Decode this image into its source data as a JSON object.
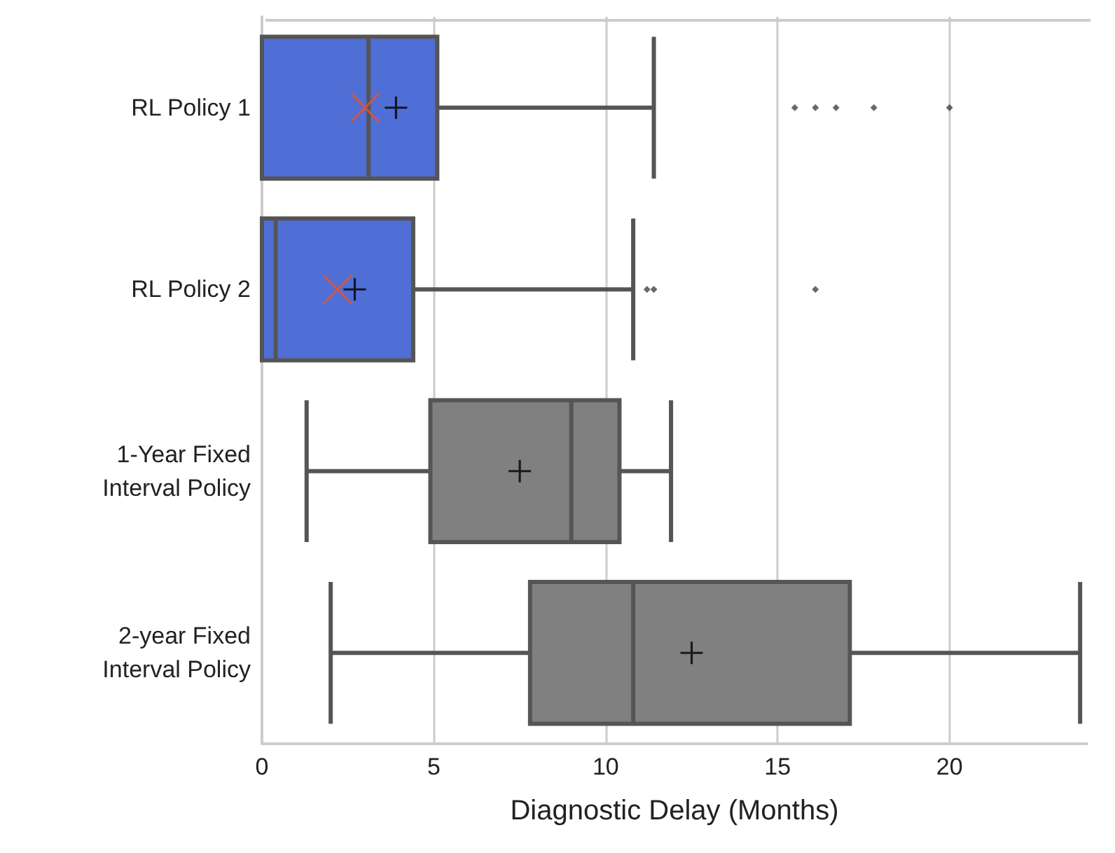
{
  "chart_data": {
    "type": "box",
    "orientation": "horizontal",
    "xlabel": "Diagnostic Delay (Months)",
    "categories": [
      "RL Policy 1",
      "RL Policy 2",
      "1-Year Fixed\nInterval Policy",
      "2-year Fixed\nInterval Policy"
    ],
    "xlim": [
      0,
      24
    ],
    "xticks": [
      0,
      5,
      10,
      15,
      20
    ],
    "grid": "x",
    "series": [
      {
        "colors": [
          "#4f6fd6",
          "#4f6fd6",
          "#808080",
          "#808080"
        ],
        "boxes": [
          {
            "low": 0,
            "q1": 0,
            "median": 3.1,
            "q3": 5.1,
            "high": 11.4,
            "mean": 3.9,
            "outliers": [
              15.5,
              16.1,
              16.7,
              17.8,
              20.0
            ]
          },
          {
            "low": 0,
            "q1": 0,
            "median": 0.4,
            "q3": 4.4,
            "high": 10.8,
            "mean": 2.7,
            "outliers": [
              11.2,
              11.4,
              16.1
            ]
          },
          {
            "low": 1.3,
            "q1": 4.9,
            "median": 9.0,
            "q3": 10.4,
            "high": 11.9,
            "mean": 7.5
          },
          {
            "low": 2.0,
            "q1": 7.8,
            "median": 10.8,
            "q3": 17.1,
            "high": 23.8,
            "mean": 12.5
          }
        ]
      },
      {
        "type": "scatter",
        "marker": "cross",
        "color": "#e8532a",
        "x": [
          "RL Policy 1",
          "RL Policy 2"
        ],
        "values": [
          3.0,
          2.2
        ]
      }
    ]
  }
}
